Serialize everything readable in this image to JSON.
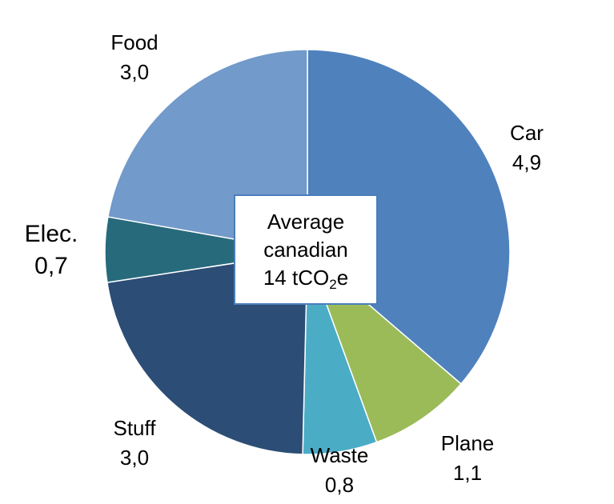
{
  "chart_data": {
    "type": "pie",
    "center_text": {
      "line1": "Average",
      "line2": "canadian",
      "line3_prefix": "14 tCO",
      "line3_sub": "2",
      "line3_suffix": "e"
    },
    "slices": [
      {
        "label": "Car",
        "value_text": "4,9",
        "value": 4.9,
        "color": "#4f81bd"
      },
      {
        "label": "Plane",
        "value_text": "1,1",
        "value": 1.1,
        "color": "#9bbb59"
      },
      {
        "label": "Waste",
        "value_text": "0,8",
        "value": 0.8,
        "color": "#4bacc6"
      },
      {
        "label": "Stuff",
        "value_text": "3,0",
        "value": 3.0,
        "color": "#2c4d75"
      },
      {
        "label": "Elec.",
        "value_text": "0,7",
        "value": 0.7,
        "color": "#276a7c"
      },
      {
        "label": "Food",
        "value_text": "3,0",
        "value": 3.0,
        "color": "#729aca"
      }
    ]
  }
}
